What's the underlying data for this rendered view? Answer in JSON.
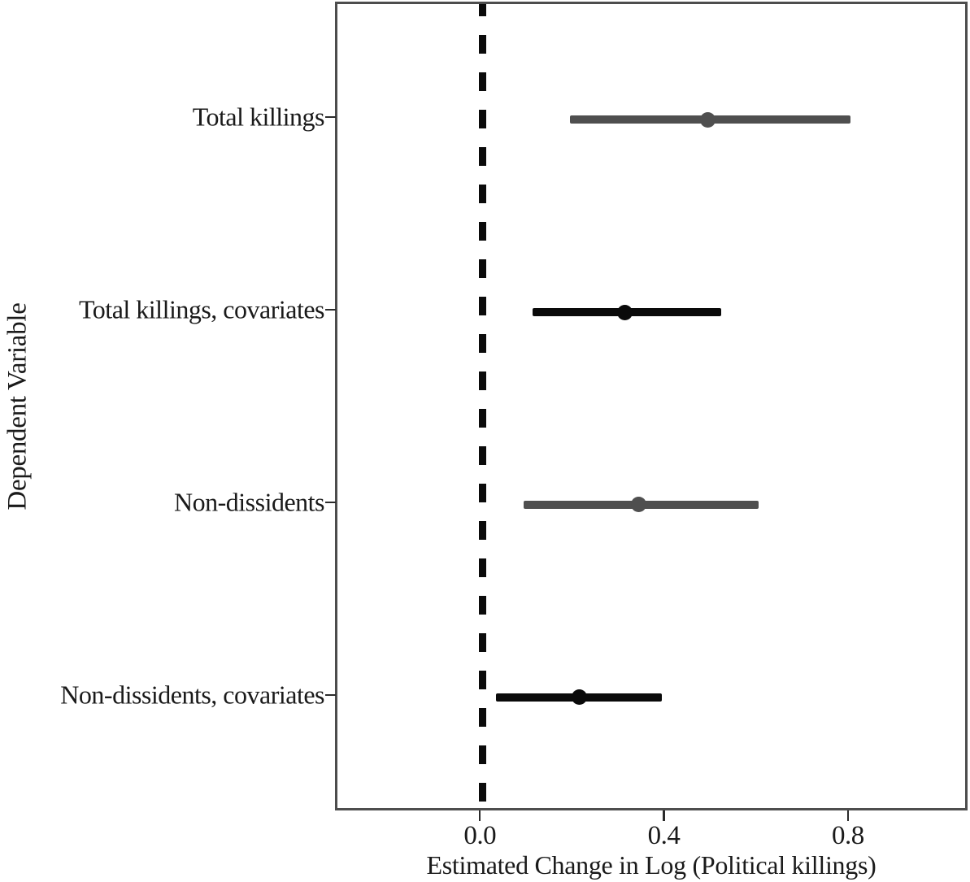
{
  "figure": {
    "background": "#ffffff"
  },
  "chart_data": {
    "type": "scatter",
    "subtype": "coefficient-forest-plot",
    "title": "",
    "xlabel": "Estimated Change in Log (Political killings)",
    "ylabel": "Dependent Variable",
    "xlim": [
      -0.315,
      1.06
    ],
    "x_tick_values": [
      0.0,
      0.4,
      0.8
    ],
    "x_tick_labels": [
      "0.0",
      "0.4",
      "0.8"
    ],
    "grid": false,
    "legend": false,
    "reference_line": {
      "x": 0.0,
      "style": "dashed",
      "color": "#0b0b0b"
    },
    "categories": [
      "Total killings",
      "Total killings, covariates",
      "Non-dissidents",
      "Non-dissidents, covariates"
    ],
    "points": [
      {
        "label": "Total killings",
        "estimate": 0.49,
        "ci_low": 0.19,
        "ci_high": 0.8,
        "color": "#4f4f4f"
      },
      {
        "label": "Total killings, covariates",
        "estimate": 0.31,
        "ci_low": 0.11,
        "ci_high": 0.52,
        "color": "#0a0a0a"
      },
      {
        "label": "Non-dissidents",
        "estimate": 0.34,
        "ci_low": 0.09,
        "ci_high": 0.6,
        "color": "#4f4f4f"
      },
      {
        "label": "Non-dissidents, covariates",
        "estimate": 0.21,
        "ci_low": 0.03,
        "ci_high": 0.39,
        "color": "#0a0a0a"
      }
    ],
    "colors": {
      "gray_series": "#4f4f4f",
      "black_series": "#0a0a0a",
      "panel_border": "#4d4d4d",
      "text": "#1a1a1a"
    }
  }
}
